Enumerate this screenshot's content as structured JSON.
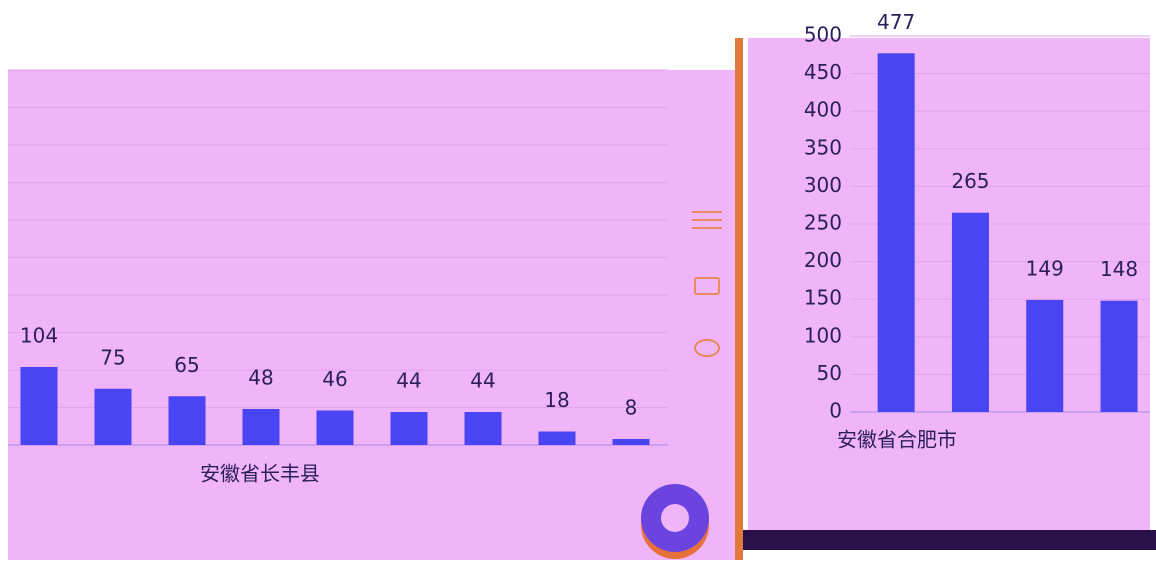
{
  "chart_data": [
    {
      "type": "bar",
      "x_label": "安徽省长丰县",
      "categories": [
        null,
        null,
        null,
        null,
        null,
        null,
        null,
        null,
        null
      ],
      "values": [
        104,
        75,
        65,
        48,
        46,
        44,
        44,
        18,
        8
      ],
      "color": "#4a45f2",
      "ylim": [
        0,
        500
      ],
      "yticks": [
        0,
        50,
        100,
        150,
        200,
        250,
        300,
        350,
        400,
        450,
        500
      ],
      "grid": true,
      "tick_labels": false
    },
    {
      "type": "bar",
      "x_label": "安徽省合肥市",
      "categories": [
        null,
        null,
        null,
        null
      ],
      "values": [
        477,
        265,
        149,
        148
      ],
      "color": "#4a45f2",
      "ylim": [
        0,
        500
      ],
      "yticks": [
        0,
        50,
        100,
        150,
        200,
        250,
        300,
        350,
        400,
        450,
        500
      ],
      "grid": true,
      "tick_labels": true
    }
  ]
}
